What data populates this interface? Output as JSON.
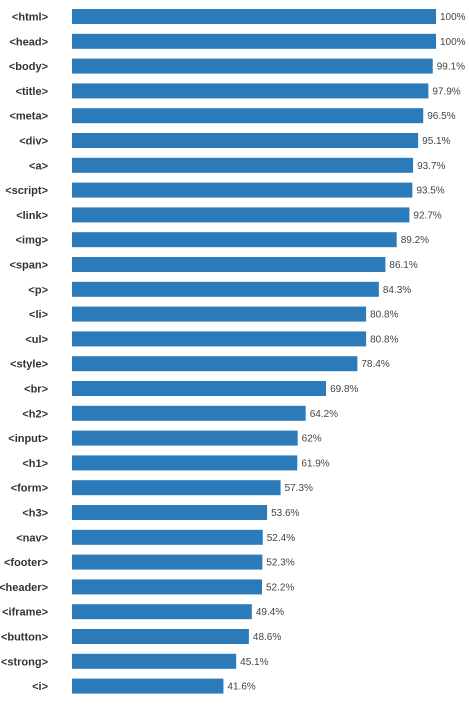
{
  "chart_data": {
    "type": "bar",
    "orientation": "horizontal",
    "categories": [
      "<html>",
      "<head>",
      "<body>",
      "<title>",
      "<meta>",
      "<div>",
      "<a>",
      "<script>",
      "<link>",
      "<img>",
      "<span>",
      "<p>",
      "<li>",
      "<ul>",
      "<style>",
      "<br>",
      "<h2>",
      "<input>",
      "<h1>",
      "<form>",
      "<h3>",
      "<nav>",
      "<footer>",
      "<header>",
      "<iframe>",
      "<button>",
      "<strong>",
      "<i>"
    ],
    "values": [
      100,
      100,
      99.1,
      97.9,
      96.5,
      95.1,
      93.7,
      93.5,
      92.7,
      89.2,
      86.1,
      84.3,
      80.8,
      80.8,
      78.4,
      69.8,
      64.2,
      62,
      61.9,
      57.3,
      53.6,
      52.4,
      52.3,
      52.2,
      49.4,
      48.6,
      45.1,
      41.6
    ],
    "value_labels": [
      "100%",
      "100%",
      "99.1%",
      "97.9%",
      "96.5%",
      "95.1%",
      "93.7%",
      "93.5%",
      "92.7%",
      "89.2%",
      "86.1%",
      "84.3%",
      "80.8%",
      "80.8%",
      "78.4%",
      "69.8%",
      "64.2%",
      "62%",
      "61.9%",
      "57.3%",
      "53.6%",
      "52.4%",
      "52.3%",
      "52.2%",
      "49.4%",
      "48.6%",
      "45.1%",
      "41.6%"
    ],
    "xlim": [
      0,
      100
    ],
    "grid": false,
    "legend": "none",
    "colors": {
      "bar": "#2b7bba",
      "text": "#333333"
    }
  }
}
